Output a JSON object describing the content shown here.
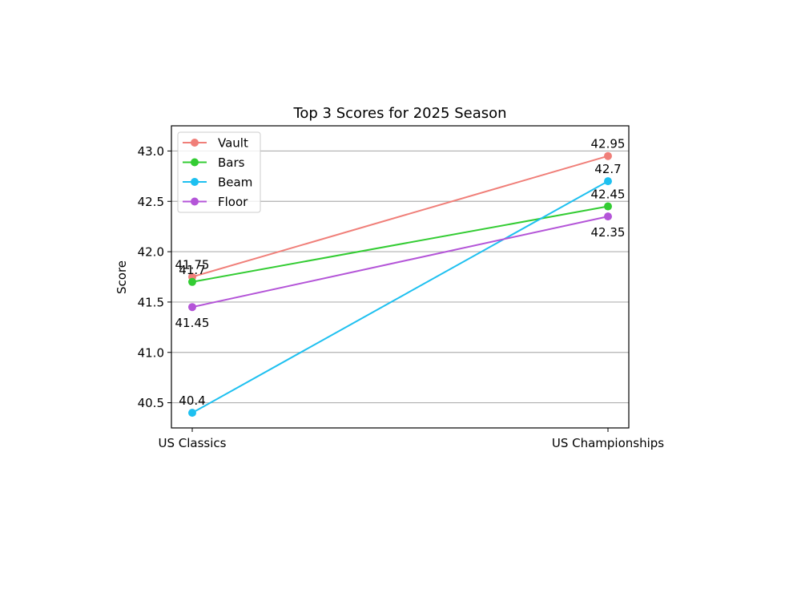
{
  "chart_data": {
    "type": "line",
    "title": "Top 3 Scores for 2025 Season",
    "xlabel": "",
    "ylabel": "Score",
    "categories": [
      "US Classics",
      "US Championships"
    ],
    "ylim": [
      40.25,
      43.25
    ],
    "yticks": [
      "40.5",
      "41.0",
      "41.5",
      "42.0",
      "42.5",
      "43.0"
    ],
    "grid": "y",
    "legend_position": "upper-left",
    "series": [
      {
        "name": "Vault",
        "color": "#f07f79",
        "values": [
          41.75,
          42.95
        ],
        "labels": [
          "41.75",
          "42.95"
        ],
        "label_pos": [
          "above",
          "above"
        ]
      },
      {
        "name": "Bars",
        "color": "#33cc33",
        "values": [
          41.7,
          42.45
        ],
        "labels": [
          "41.7",
          "42.45"
        ],
        "label_pos": [
          "above",
          "above"
        ]
      },
      {
        "name": "Beam",
        "color": "#1ec0f0",
        "values": [
          40.4,
          42.7
        ],
        "labels": [
          "40.4",
          "42.7"
        ],
        "label_pos": [
          "above",
          "above"
        ]
      },
      {
        "name": "Floor",
        "color": "#b455d8",
        "values": [
          41.45,
          42.35
        ],
        "labels": [
          "41.45",
          "42.35"
        ],
        "label_pos": [
          "below",
          "below"
        ]
      }
    ]
  }
}
